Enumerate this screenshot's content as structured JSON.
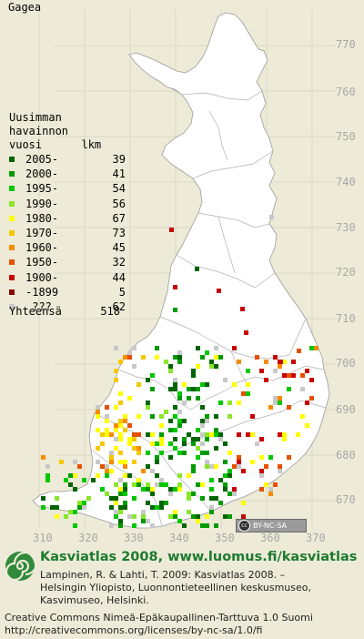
{
  "title": "Gagea",
  "legend": {
    "header": [
      "Uusimman",
      "havainnon",
      "vuosi      lkm"
    ],
    "items": [
      {
        "label": "2005-",
        "count": "39",
        "color": "#006400"
      },
      {
        "label": "2000-",
        "count": "41",
        "color": "#009b00"
      },
      {
        "label": "1995-",
        "count": "54",
        "color": "#00c800"
      },
      {
        "label": "1990-",
        "count": "56",
        "color": "#8ae62a"
      },
      {
        "label": "1980-",
        "count": "67",
        "color": "#ffff00"
      },
      {
        "label": "1970-",
        "count": "73",
        "color": "#f5c800"
      },
      {
        "label": "1960-",
        "count": "45",
        "color": "#f58c00"
      },
      {
        "label": "1950-",
        "count": "32",
        "color": "#e65000"
      },
      {
        "label": "1900-",
        "count": "44",
        "color": "#c80000"
      },
      {
        "label": "-1899",
        "count": "5",
        "color": "#8c0000"
      },
      {
        "label": " ???",
        "count": "62",
        "color": "#c8c8c8"
      }
    ],
    "total_label": "Yhteensä",
    "total_count": "518"
  },
  "y_ticks": [
    "770",
    "760",
    "750",
    "740",
    "730",
    "720",
    "710",
    "700",
    "690",
    "680",
    "670"
  ],
  "x_ticks": [
    "310",
    "320",
    "330",
    "340",
    "350",
    "360",
    "370"
  ],
  "cc_badge": "BY-NC-SA",
  "footer": {
    "title": "Kasviatlas 2008, www.luomus.fi/kasviatlas",
    "line1": "Lampinen, R. & Lahti, T. 2009: Kasviatlas 2008. –",
    "line2": "Helsingin Yliopisto, Luonnontieteellinen keskusmuseo,",
    "line3": "Kasvimuseo, Helsinki."
  },
  "license": {
    "line1": "Creative Commons Nimeä-Epäkaupallinen-Tarttuva 1.0 Suomi",
    "line2": "http://creativecommons.org/licenses/by-nc-sa/1.0/fi"
  }
}
